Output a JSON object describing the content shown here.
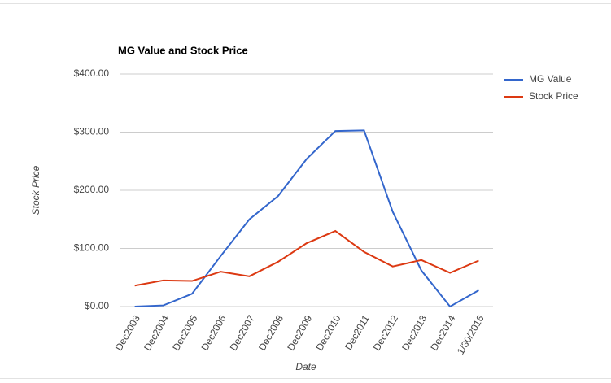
{
  "chart_data": {
    "type": "line",
    "title": "MG Value and Stock Price",
    "x_label": "Date",
    "y_label": "Stock Price",
    "categories": [
      "Dec2003",
      "Dec2004",
      "Dec2005",
      "Dec2006",
      "Dec2007",
      "Dec2008",
      "Dec2009",
      "Dec2010",
      "Dec2011",
      "Dec2012",
      "Dec2013",
      "Dec2014",
      "1/30/2016"
    ],
    "series": [
      {
        "name": "MG Value",
        "color": "#3366cc",
        "values": [
          0,
          2,
          22,
          87,
          150,
          190,
          254,
          302,
          303,
          163,
          62,
          0,
          28
        ]
      },
      {
        "name": "Stock Price",
        "color": "#dc3912",
        "values": [
          36,
          45,
          44,
          60,
          52,
          77,
          109,
          130,
          94,
          69,
          80,
          58,
          79
        ]
      }
    ],
    "ylim": [
      0,
      400
    ],
    "yticks": [
      {
        "value": 0,
        "label": "$0.00"
      },
      {
        "value": 100,
        "label": "$100.00"
      },
      {
        "value": 200,
        "label": "$200.00"
      },
      {
        "value": 300,
        "label": "$300.00"
      },
      {
        "value": 400,
        "label": "$400.00"
      }
    ],
    "grid": true,
    "legend": "right"
  }
}
